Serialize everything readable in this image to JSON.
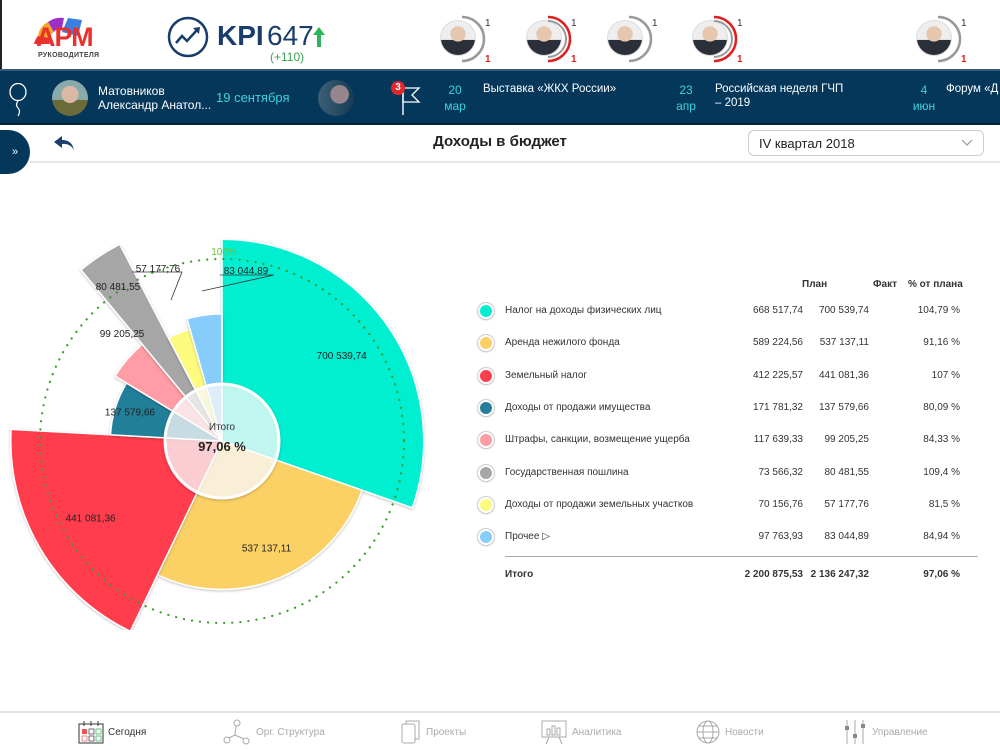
{
  "header": {
    "logo_text": "АРМ",
    "logo_sub": "РУКОВОДИТЕЛЯ",
    "kpi_label": "KPI",
    "kpi_value": "647",
    "kpi_delta": "(+110)",
    "kpi_trend": "up",
    "people": [
      {
        "top_count": "1",
        "bottom_count": "1",
        "ring": "gray"
      },
      {
        "top_count": "1",
        "bottom_count": "1",
        "ring": "red"
      },
      {
        "top_count": "1",
        "bottom_count": "",
        "ring": "gray"
      },
      {
        "top_count": "1",
        "bottom_count": "1",
        "ring": "red"
      },
      {
        "top_count": "1",
        "bottom_count": "1",
        "ring": "gray"
      }
    ]
  },
  "navbar": {
    "birthday_name": "Матовников\nАлександр Анатол...",
    "birthday_name_line1": "Матовников",
    "birthday_name_line2": "Александр Анатол...",
    "birthday_date": "19 сентября",
    "flag_badge": "3",
    "events": [
      {
        "day": "20",
        "month": "мар",
        "title": "Выставка «ЖКХ России»"
      },
      {
        "day": "23",
        "month": "апр",
        "title_line1": "Российская неделя ГЧП",
        "title_line2": "– 2019"
      },
      {
        "day": "4",
        "month": "июн",
        "title": "Форум «Д"
      }
    ]
  },
  "page": {
    "sidebar_toggle": "»",
    "title": "Доходы в бюджет",
    "period": "IV квартал 2018"
  },
  "table": {
    "headers": {
      "plan": "План",
      "fact": "Факт",
      "pct": "% от плана"
    },
    "rows": [
      {
        "label": "Налог на доходы физических лиц",
        "plan": "668 517,74",
        "fact": "700 539,74",
        "pct": "104,79 %",
        "color": "#00efd1"
      },
      {
        "label": "Аренда нежилого фонда",
        "plan": "589 224,56",
        "fact": "537 137,11",
        "pct": "91,16 %",
        "color": "#fbd165"
      },
      {
        "label": "Земельный налог",
        "plan": "412 225,57",
        "fact": "441 081,36",
        "pct": "107 %",
        "color": "#ff3e4e"
      },
      {
        "label": "Доходы от продажи имущества",
        "plan": "171 781,32",
        "fact": "137 579,66",
        "pct": "80,09 %",
        "color": "#237f9a"
      },
      {
        "label": "Штрафы, санкции, возмещение ущерба",
        "plan": "117 639,33",
        "fact": "99 205,25",
        "pct": "84,33 %",
        "color": "#ff9ca5"
      },
      {
        "label": "Государственная пошлина",
        "plan": "73 566,32",
        "fact": "80 481,55",
        "pct": "109,4 %",
        "color": "#a6a6a6"
      },
      {
        "label": "Доходы от продажи земельных участков",
        "plan": "70 156,76",
        "fact": "57 177,76",
        "pct": "81,5 %",
        "color": "#fdfb7e"
      },
      {
        "label": "Прочее ▷",
        "plan": "97 763,93",
        "fact": "83 044,89",
        "pct": "84,94 %",
        "color": "#87cdfb"
      }
    ],
    "total": {
      "label": "Итого",
      "plan": "2 200 875,53",
      "fact": "2 136 247,32",
      "pct": "97,06 %"
    }
  },
  "chart_data": {
    "type": "pie",
    "variant": "variable-radius pie (angle = plan share, radius = % of plan)",
    "center_label": "Итого",
    "center_value": "97,06 %",
    "reference_label": "100%",
    "categories": [
      "Налог на доходы физических лиц",
      "Аренда нежилого фонда",
      "Земельный налог",
      "Доходы от продажи имущества",
      "Штрафы, санкции, возмещение ущерба",
      "Государственная пошлина",
      "Доходы от продажи земельных участков",
      "Прочее"
    ],
    "plan": [
      668517.74,
      589224.56,
      412225.57,
      171781.32,
      117639.33,
      73566.32,
      70156.76,
      97763.93
    ],
    "fact": [
      700539.74,
      537137.11,
      441081.36,
      137579.66,
      99205.25,
      80481.55,
      57177.76,
      83044.89
    ],
    "pct_of_plan": [
      104.79,
      91.16,
      107,
      80.09,
      84.33,
      109.4,
      81.5,
      84.94
    ],
    "data_labels": [
      "700 539,74",
      "537 137,11",
      "441 081,36",
      "137 579,66",
      "99 205,25",
      "80 481,55",
      "57 177,76",
      "83 044,89"
    ],
    "colors": [
      "#00efd1",
      "#fbd165",
      "#ff3e4e",
      "#237f9a",
      "#ff9ca5",
      "#a6a6a6",
      "#fdfb7e",
      "#87cdfb"
    ]
  },
  "bottom_nav": [
    {
      "label": "Сегодня",
      "icon": "calendar-icon",
      "active": true
    },
    {
      "label": "Орг. Структура",
      "icon": "org-structure-icon",
      "active": false
    },
    {
      "label": "Проекты",
      "icon": "projects-icon",
      "active": false
    },
    {
      "label": "Аналитика",
      "icon": "analytics-icon",
      "active": false
    },
    {
      "label": "Новости",
      "icon": "globe-icon",
      "active": false
    },
    {
      "label": "Управление",
      "icon": "sliders-icon",
      "active": false
    }
  ]
}
